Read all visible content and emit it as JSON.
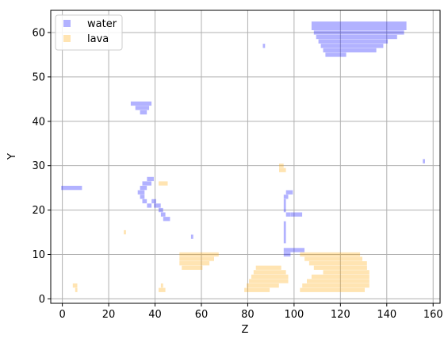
{
  "chart_data": {
    "type": "scatter",
    "title": "",
    "xlabel": "Z",
    "ylabel": "Y",
    "xlim": [
      -5,
      163
    ],
    "ylim": [
      -1,
      65
    ],
    "xticks": [
      0,
      20,
      40,
      60,
      80,
      100,
      120,
      140,
      160
    ],
    "yticks": [
      0,
      10,
      20,
      30,
      40,
      50,
      60
    ],
    "grid": true,
    "legend_position": "upper-left",
    "series": [
      {
        "name": "water",
        "color": "#0000ff",
        "marker": "square",
        "alpha": 0.3,
        "rects": [
          [
            108,
            148,
            61,
            62
          ],
          [
            109,
            147,
            60,
            60
          ],
          [
            110,
            144,
            59,
            59
          ],
          [
            111,
            140,
            58,
            58
          ],
          [
            112,
            138,
            57,
            57
          ],
          [
            113,
            135,
            56,
            56
          ],
          [
            114,
            122,
            55,
            55
          ],
          [
            87,
            87,
            57,
            57
          ],
          [
            30,
            38,
            44,
            44
          ],
          [
            32,
            37,
            43,
            43
          ],
          [
            34,
            36,
            42,
            42
          ],
          [
            0,
            8,
            25,
            25
          ],
          [
            37,
            39,
            27,
            27
          ],
          [
            35,
            38,
            26,
            26
          ],
          [
            34,
            36,
            25,
            25
          ],
          [
            33,
            35,
            24,
            24
          ],
          [
            34,
            35,
            23,
            23
          ],
          [
            35,
            36,
            22,
            22
          ],
          [
            37,
            38,
            21,
            21
          ],
          [
            39,
            40,
            22,
            22
          ],
          [
            40,
            42,
            21,
            21
          ],
          [
            42,
            43,
            20,
            20
          ],
          [
            43,
            44,
            19,
            19
          ],
          [
            44,
            46,
            18,
            18
          ],
          [
            97,
            99,
            24,
            24
          ],
          [
            96,
            97,
            23,
            23
          ],
          [
            96,
            96,
            20,
            22
          ],
          [
            97,
            98,
            19,
            19
          ],
          [
            99,
            103,
            19,
            19
          ],
          [
            96,
            96,
            13,
            17
          ],
          [
            96,
            104,
            11,
            11
          ],
          [
            96,
            98,
            10,
            10
          ],
          [
            156,
            156,
            31,
            31
          ],
          [
            56,
            56,
            14,
            14
          ]
        ]
      },
      {
        "name": "lava",
        "color": "#ffa500",
        "marker": "square",
        "alpha": 0.3,
        "rects": [
          [
            51,
            67,
            10,
            10
          ],
          [
            51,
            65,
            9,
            9
          ],
          [
            51,
            63,
            8,
            8
          ],
          [
            52,
            60,
            7,
            7
          ],
          [
            42,
            45,
            26,
            26
          ],
          [
            94,
            95,
            30,
            30
          ],
          [
            94,
            96,
            29,
            29
          ],
          [
            27,
            27,
            15,
            15
          ],
          [
            5,
            6,
            3,
            3
          ],
          [
            6,
            6,
            2,
            2
          ],
          [
            43,
            43,
            3,
            3
          ],
          [
            42,
            44,
            2,
            2
          ],
          [
            84,
            94,
            7,
            7
          ],
          [
            83,
            96,
            6,
            6
          ],
          [
            82,
            97,
            5,
            5
          ],
          [
            81,
            97,
            4,
            4
          ],
          [
            80,
            93,
            3,
            3
          ],
          [
            79,
            89,
            2,
            2
          ],
          [
            103,
            128,
            10,
            10
          ],
          [
            105,
            129,
            9,
            9
          ],
          [
            107,
            131,
            8,
            8
          ],
          [
            109,
            131,
            7,
            7
          ],
          [
            113,
            132,
            6,
            6
          ],
          [
            108,
            132,
            5,
            5
          ],
          [
            106,
            132,
            4,
            4
          ],
          [
            104,
            132,
            3,
            3
          ],
          [
            103,
            130,
            2,
            2
          ]
        ]
      }
    ]
  }
}
